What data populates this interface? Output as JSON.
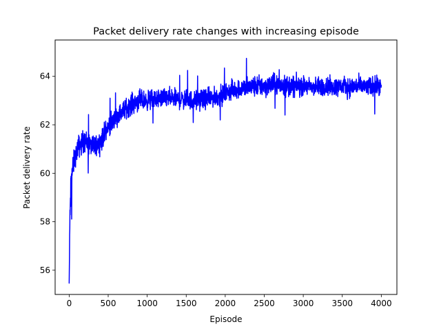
{
  "chart_data": {
    "type": "line",
    "title": "Packet delivery rate changes with increasing episode",
    "xlabel": "Episode",
    "ylabel": "Packet delivery rate",
    "xlim": [
      -180,
      4200
    ],
    "ylim": [
      55.0,
      65.5
    ],
    "xticks": [
      0,
      500,
      1000,
      1500,
      2000,
      2500,
      3000,
      3500,
      4000
    ],
    "yticks": [
      56,
      58,
      60,
      62,
      64
    ],
    "grid": false,
    "legend": "none",
    "series": [
      {
        "color": "#0000ff",
        "x": [
          0,
          10,
          20,
          30,
          40,
          50,
          60,
          80,
          100,
          120,
          150,
          180,
          200,
          250,
          300,
          350,
          400,
          450,
          500,
          550,
          600,
          650,
          700,
          750,
          800,
          850,
          900,
          950,
          1000,
          1050,
          1100,
          1200,
          1300,
          1400,
          1500,
          1600,
          1700,
          1800,
          1900,
          2000,
          2100,
          2200,
          2300,
          2400,
          2500,
          2600,
          2700,
          2800,
          2900,
          3000,
          3100,
          3200,
          3300,
          3400,
          3500,
          3600,
          3700,
          3800,
          3900,
          4000
        ],
        "y": [
          55.45,
          58.2,
          59.3,
          59.8,
          60.1,
          60.3,
          60.45,
          60.7,
          60.95,
          61.1,
          61.2,
          61.3,
          61.35,
          61.2,
          61.1,
          61.15,
          61.3,
          61.6,
          61.9,
          62.1,
          62.3,
          62.45,
          62.6,
          62.75,
          62.85,
          62.95,
          63.0,
          63.0,
          63.0,
          63.05,
          63.05,
          63.1,
          63.1,
          63.05,
          63.05,
          63.0,
          63.05,
          63.1,
          63.15,
          63.3,
          63.45,
          63.5,
          63.55,
          63.6,
          63.6,
          63.65,
          63.65,
          63.6,
          63.6,
          63.6,
          63.55,
          63.55,
          63.6,
          63.55,
          63.6,
          63.55,
          63.6,
          63.55,
          63.6,
          63.55
        ],
        "band": [
          0,
          1.0,
          0.9,
          0.8,
          0.7,
          0.65,
          0.6,
          0.55,
          0.55,
          0.6,
          0.6,
          0.6,
          0.6,
          0.55,
          0.55,
          0.55,
          0.55,
          0.55,
          0.55,
          0.5,
          0.5,
          0.5,
          0.5,
          0.55,
          0.55,
          0.55,
          0.55,
          0.5,
          0.5,
          0.5,
          0.5,
          0.5,
          0.5,
          0.5,
          0.5,
          0.5,
          0.5,
          0.5,
          0.5,
          0.5,
          0.5,
          0.5,
          0.55,
          0.55,
          0.55,
          0.55,
          0.55,
          0.55,
          0.55,
          0.5,
          0.5,
          0.5,
          0.5,
          0.5,
          0.5,
          0.5,
          0.5,
          0.5,
          0.5,
          0.5
        ]
      }
    ]
  }
}
